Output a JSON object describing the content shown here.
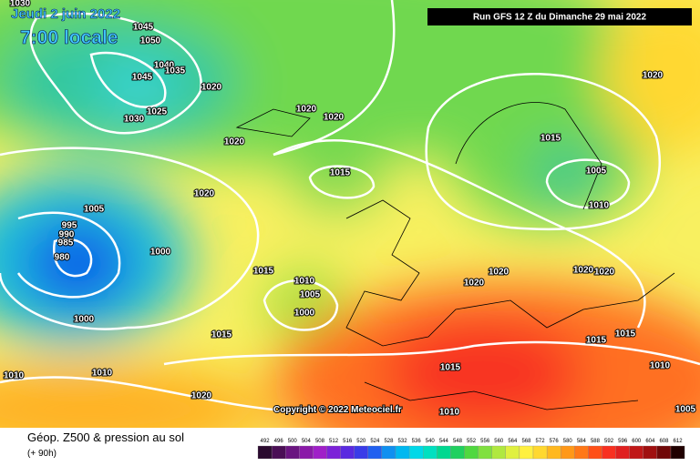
{
  "header": {
    "date": "Jeudi 2 juin 2022",
    "time": "7:00 locale",
    "run": "Run GFS 12 Z du Dimanche 29 mai 2022",
    "copyright": "Copyright © 2022 Meteociel.fr"
  },
  "footer": {
    "title": "Géop. Z500 & pression au sol",
    "lead": "(+ 90h)"
  },
  "legend": {
    "values": [
      492,
      496,
      500,
      504,
      508,
      512,
      516,
      520,
      524,
      528,
      532,
      536,
      540,
      544,
      548,
      552,
      556,
      560,
      564,
      568,
      572,
      576,
      580,
      584,
      588,
      592,
      596,
      600,
      604,
      608,
      612
    ],
    "colors": [
      "#2a0a2e",
      "#4a0f55",
      "#6a1580",
      "#8a1aa8",
      "#a020c8",
      "#7c22d8",
      "#5a2ae0",
      "#3a3ce8",
      "#2060f0",
      "#1090f0",
      "#00b8f0",
      "#00d8e8",
      "#00e0c0",
      "#00d890",
      "#20d060",
      "#50d840",
      "#80e040",
      "#b0e840",
      "#e0f040",
      "#fff040",
      "#ffd830",
      "#ffb820",
      "#ff9818",
      "#ff7818",
      "#ff5018",
      "#f83020",
      "#e02020",
      "#c01818",
      "#a01010",
      "#700808",
      "#200000"
    ]
  },
  "isobar_labels": [
    1030,
    1045,
    1050,
    1040,
    1035,
    1045,
    1020,
    1030,
    1025,
    1020,
    1020,
    1020,
    1020,
    1015,
    1005,
    1010,
    1015,
    1020,
    1005,
    995,
    990,
    985,
    980,
    1000,
    1015,
    1010,
    1005,
    1000,
    1000,
    1020,
    1020,
    1020,
    1020,
    1015,
    1010,
    1010,
    1015,
    1020,
    1010,
    1015,
    1015,
    1010,
    1005
  ]
}
